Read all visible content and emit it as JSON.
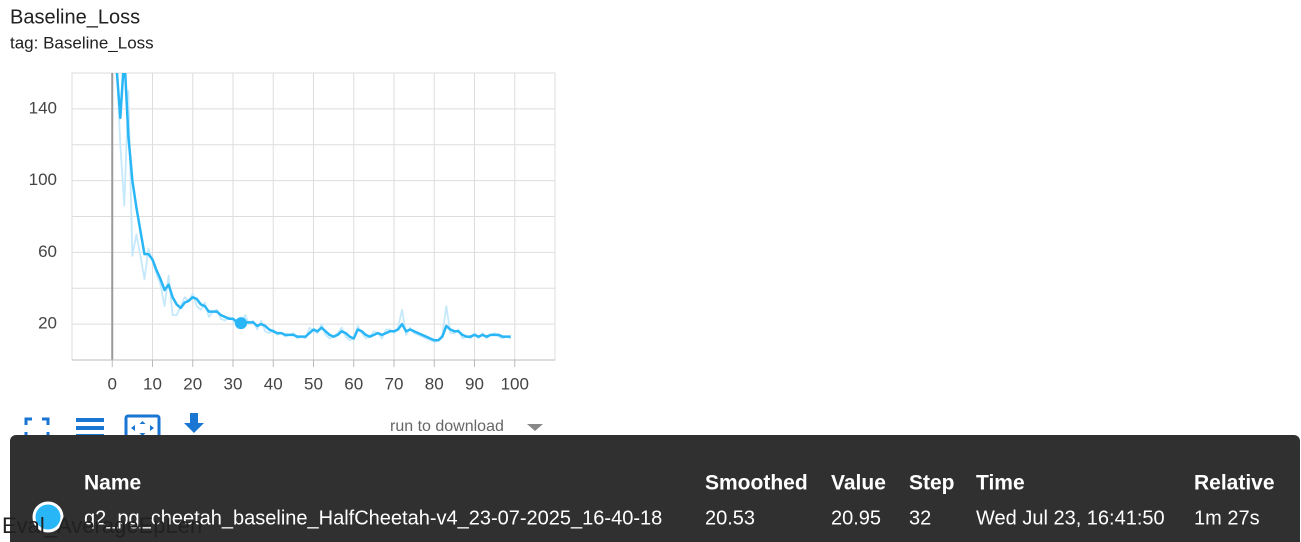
{
  "chart_data": {
    "type": "line",
    "title": "Baseline_Loss",
    "subtitle": "tag: Baseline_Loss",
    "x": [
      1,
      2,
      3,
      4,
      5,
      6,
      7,
      8,
      9,
      10,
      11,
      12,
      13,
      14,
      15,
      16,
      17,
      18,
      19,
      20,
      21,
      22,
      23,
      24,
      25,
      26,
      27,
      28,
      29,
      30,
      31,
      32,
      33,
      34,
      35,
      36,
      37,
      38,
      39,
      40,
      41,
      42,
      43,
      44,
      45,
      46,
      47,
      48,
      49,
      50,
      51,
      52,
      53,
      54,
      55,
      56,
      57,
      58,
      59,
      60,
      61,
      62,
      63,
      64,
      65,
      66,
      67,
      68,
      69,
      70,
      71,
      72,
      73,
      74,
      75,
      76,
      77,
      78,
      79,
      80,
      81,
      82,
      83,
      84,
      85,
      86,
      87,
      88,
      89,
      90,
      91,
      92,
      93,
      94,
      95,
      96,
      97,
      98,
      99
    ],
    "series": [
      {
        "color": "#c5e9fb",
        "values": [
          170,
          120,
          86,
          150,
          58,
          70,
          58,
          45,
          62,
          55,
          48,
          42,
          30,
          47,
          25,
          25,
          30,
          35,
          33,
          37,
          30,
          28,
          32,
          24,
          27,
          28,
          23,
          22,
          24,
          22,
          18,
          20.95,
          25,
          20,
          22,
          17,
          22,
          16,
          15,
          17,
          14,
          15,
          13,
          14,
          15,
          12,
          13,
          12,
          18,
          16,
          15,
          20,
          14,
          12,
          13,
          15,
          18,
          13,
          11,
          12,
          19,
          15,
          12,
          13,
          16,
          15,
          12,
          17,
          17,
          15,
          18,
          28,
          14,
          18,
          15,
          14,
          13,
          12,
          11,
          10,
          11,
          14,
          30,
          15,
          15,
          17,
          12,
          13,
          12,
          15,
          12,
          15,
          12,
          14,
          15,
          13,
          12,
          13,
          12
        ]
      },
      {
        "color": "#29b6f6",
        "values": [
          165,
          135,
          170,
          125,
          100,
          85,
          72,
          59,
          59,
          56,
          50,
          45,
          39,
          42,
          35,
          31,
          29,
          32,
          33,
          35,
          34,
          31,
          30,
          27,
          27,
          27,
          25,
          24,
          23,
          23,
          21,
          20.53,
          21,
          21,
          21,
          19,
          20,
          19,
          17,
          16,
          15,
          15,
          14,
          14,
          14,
          13,
          13,
          13,
          15,
          17,
          16,
          18,
          16,
          14,
          13,
          14,
          16,
          15,
          13,
          12,
          17,
          16,
          14,
          13,
          14,
          15,
          14,
          15,
          16,
          16,
          17,
          20,
          16,
          17,
          16,
          15,
          14,
          13,
          12,
          11,
          11,
          13,
          19,
          17,
          16,
          16,
          14,
          13,
          13,
          14,
          13,
          14,
          13,
          14,
          14,
          14,
          13,
          13,
          13
        ]
      }
    ],
    "xlim": [
      -10,
      110
    ],
    "xticks": [
      0,
      10,
      20,
      30,
      40,
      50,
      60,
      70,
      80,
      90,
      100
    ],
    "ylim": [
      0,
      160
    ],
    "yticks": [
      20,
      60,
      100,
      140
    ],
    "ygrid": [
      0,
      20,
      40,
      60,
      80,
      100,
      120,
      140,
      160
    ],
    "grid": true
  },
  "toolbar": {
    "download_select": "run to download"
  },
  "tooltip": {
    "headers": [
      "Name",
      "Smoothed",
      "Value",
      "Step",
      "Time",
      "Relative"
    ],
    "row": [
      "q2_pg_cheetah_baseline_HalfCheetah-v4_23-07-2025_16-40-18",
      20.53,
      20.95,
      32,
      "Wed Jul 23, 16:41:50",
      "1m 27s"
    ]
  },
  "next_card": {
    "title": "Eval_AverageEpLen"
  }
}
